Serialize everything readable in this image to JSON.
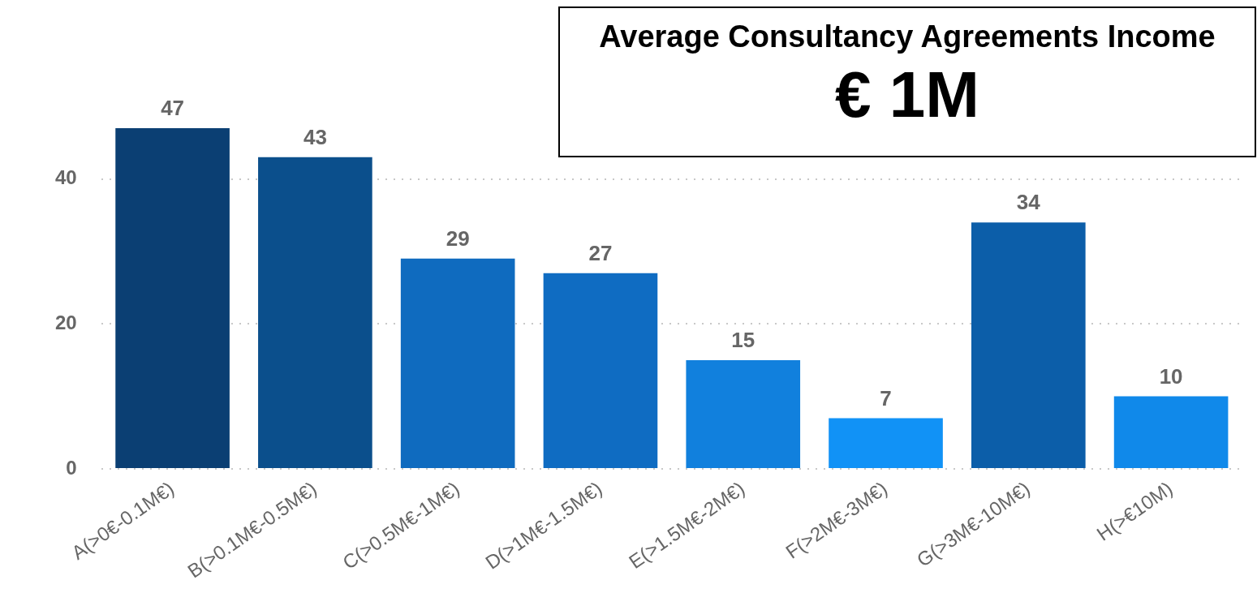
{
  "chart_data": [
    {
      "type": "bar",
      "categories": [
        "A(>0€-0.1M€)",
        "B(>0.1M€-0.5M€)",
        "C(>0.5M€-1M€)",
        "D(>1M€-1.5M€)",
        "E(>1.5M€-2M€)",
        "F(>2M€-3M€)",
        "G(>3M€-10M€)",
        "H(>€10M)"
      ],
      "values": [
        47,
        43,
        29,
        27,
        15,
        7,
        34,
        10
      ],
      "colors": [
        "#0b3f73",
        "#0b4f8c",
        "#0f6bbf",
        "#0f6cc2",
        "#1180dd",
        "#1192f6",
        "#0c5ea9",
        "#1089ea"
      ],
      "ylim": [
        0,
        47
      ],
      "yticks": [
        0,
        20,
        40
      ],
      "grid": "y",
      "data_labels": true
    },
    {
      "type": "other",
      "title": "Average Consultancy Agreements Income",
      "annotations": [
        "€ 1M"
      ]
    }
  ]
}
